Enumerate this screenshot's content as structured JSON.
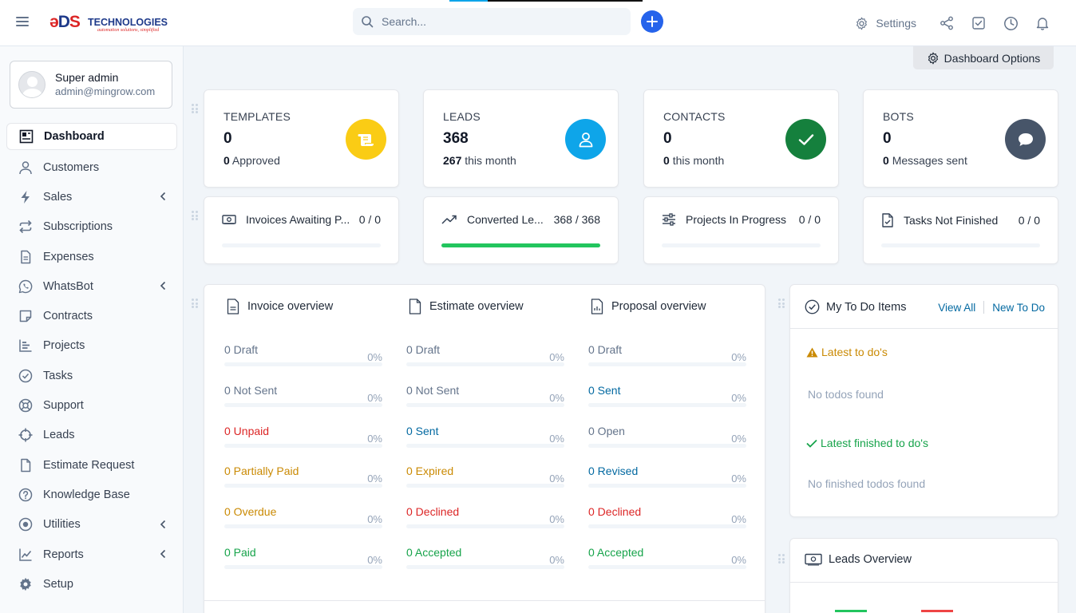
{
  "header": {
    "logo": {
      "brand_a": "ADS",
      "brand_b": "TECHNOLOGIES",
      "tagline": "automation solutions, simplified"
    },
    "search_placeholder": "Search...",
    "settings_label": "Settings"
  },
  "user": {
    "name": "Super admin",
    "email": "admin@mingrow.com"
  },
  "nav": [
    {
      "label": "Dashboard",
      "icon": "dashboard-icon",
      "active": true
    },
    {
      "label": "Customers",
      "icon": "user-icon"
    },
    {
      "label": "Sales",
      "icon": "bolt-icon",
      "has_children": true
    },
    {
      "label": "Subscriptions",
      "icon": "repeat-icon"
    },
    {
      "label": "Expenses",
      "icon": "file-icon"
    },
    {
      "label": "WhatsBot",
      "icon": "whatsapp-icon",
      "has_children": true
    },
    {
      "label": "Contracts",
      "icon": "note-icon"
    },
    {
      "label": "Projects",
      "icon": "chart-bars-icon"
    },
    {
      "label": "Tasks",
      "icon": "check-circle-icon"
    },
    {
      "label": "Support",
      "icon": "lifebuoy-icon"
    },
    {
      "label": "Leads",
      "icon": "crosshair-icon"
    },
    {
      "label": "Estimate Request",
      "icon": "document-icon"
    },
    {
      "label": "Knowledge Base",
      "icon": "question-icon"
    },
    {
      "label": "Utilities",
      "icon": "utilities-icon",
      "has_children": true
    },
    {
      "label": "Reports",
      "icon": "line-chart-icon",
      "has_children": true
    },
    {
      "label": "Setup",
      "icon": "gear-icon"
    }
  ],
  "dashboard_options_label": "Dashboard Options",
  "stats": [
    {
      "label": "TEMPLATES",
      "value": "0",
      "sub_value": "0",
      "sub_text": "Approved",
      "color": "#facc15",
      "icon": "template-icon"
    },
    {
      "label": "LEADS",
      "value": "368",
      "sub_value": "267",
      "sub_text": "this month",
      "color": "#0ea5e9",
      "icon": "person-icon"
    },
    {
      "label": "CONTACTS",
      "value": "0",
      "sub_value": "0",
      "sub_text": "this month",
      "color": "#15803d",
      "icon": "checkmark-icon"
    },
    {
      "label": "BOTS",
      "value": "0",
      "sub_value": "0",
      "sub_text": "Messages sent",
      "color": "#475569",
      "icon": "chat-bubble-icon"
    }
  ],
  "progress_cards": [
    {
      "label": "Invoices Awaiting P...",
      "value": "0 / 0",
      "fraction": 0,
      "icon": "money-icon"
    },
    {
      "label": "Converted Le...",
      "value": "368 / 368",
      "fraction": 1,
      "icon": "trend-up-icon"
    },
    {
      "label": "Projects In Progress",
      "value": "0 / 0",
      "fraction": 0,
      "icon": "sliders-icon"
    },
    {
      "label": "Tasks Not Finished",
      "value": "0 / 0",
      "fraction": 0,
      "icon": "task-file-icon"
    }
  ],
  "overviews": [
    {
      "title": "Invoice overview",
      "icon": "invoice-icon",
      "rows": [
        {
          "label": "0 Draft",
          "pct": "0%",
          "tone": "gray"
        },
        {
          "label": "0 Not Sent",
          "pct": "0%",
          "tone": "gray"
        },
        {
          "label": "0 Unpaid",
          "pct": "0%",
          "tone": "red"
        },
        {
          "label": "0 Partially Paid",
          "pct": "0%",
          "tone": "amber"
        },
        {
          "label": "0 Overdue",
          "pct": "0%",
          "tone": "amber"
        },
        {
          "label": "0 Paid",
          "pct": "0%",
          "tone": "green"
        }
      ]
    },
    {
      "title": "Estimate overview",
      "icon": "estimate-icon",
      "rows": [
        {
          "label": "0 Draft",
          "pct": "0%",
          "tone": "gray"
        },
        {
          "label": "0 Not Sent",
          "pct": "0%",
          "tone": "gray"
        },
        {
          "label": "0 Sent",
          "pct": "0%",
          "tone": "blue"
        },
        {
          "label": "0 Expired",
          "pct": "0%",
          "tone": "amber"
        },
        {
          "label": "0 Declined",
          "pct": "0%",
          "tone": "red"
        },
        {
          "label": "0 Accepted",
          "pct": "0%",
          "tone": "green"
        }
      ]
    },
    {
      "title": "Proposal overview",
      "icon": "proposal-icon",
      "rows": [
        {
          "label": "0 Draft",
          "pct": "0%",
          "tone": "gray"
        },
        {
          "label": "0 Sent",
          "pct": "0%",
          "tone": "blue"
        },
        {
          "label": "0 Open",
          "pct": "0%",
          "tone": "gray"
        },
        {
          "label": "0 Revised",
          "pct": "0%",
          "tone": "blue"
        },
        {
          "label": "0 Declined",
          "pct": "0%",
          "tone": "red"
        },
        {
          "label": "0 Accepted",
          "pct": "0%",
          "tone": "green"
        }
      ]
    }
  ],
  "todo": {
    "title": "My To Do Items",
    "view_all": "View All",
    "new_todo": "New To Do",
    "latest_label": "Latest to do's",
    "latest_empty": "No todos found",
    "finished_label": "Latest finished to do's",
    "finished_empty": "No finished todos found"
  },
  "leads_overview": {
    "title": "Leads Overview"
  }
}
